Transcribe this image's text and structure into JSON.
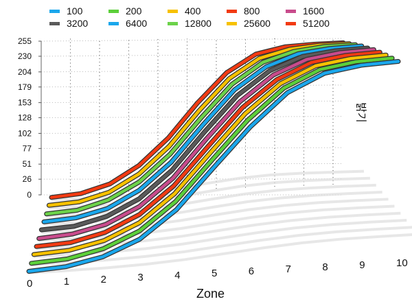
{
  "chart_data": {
    "type": "line",
    "style": "3d-ribbon",
    "xlabel": "Zone",
    "ylabel": "밝기",
    "categories": [
      "0",
      "1",
      "2",
      "3",
      "4",
      "5",
      "6",
      "7",
      "8",
      "9",
      "10"
    ],
    "yticks": [
      "0",
      "26",
      "51",
      "77",
      "102",
      "128",
      "153",
      "179",
      "204",
      "230",
      "255"
    ],
    "ylim": [
      0,
      255
    ],
    "grid": true,
    "legend": "top",
    "series": [
      {
        "name": "100",
        "color": "#1aa7ec",
        "values": [
          2,
          5,
          14,
          32,
          64,
          110,
          155,
          192,
          212,
          219,
          221
        ]
      },
      {
        "name": "200",
        "color": "#5ccf3a",
        "values": [
          2,
          5,
          15,
          34,
          67,
          114,
          160,
          196,
          216,
          223,
          225
        ]
      },
      {
        "name": "400",
        "color": "#f7c100",
        "values": [
          3,
          6,
          16,
          36,
          70,
          118,
          165,
          200,
          220,
          227,
          229
        ]
      },
      {
        "name": "800",
        "color": "#f23a12",
        "values": [
          3,
          6,
          17,
          38,
          73,
          122,
          170,
          204,
          224,
          231,
          233
        ]
      },
      {
        "name": "1600",
        "color": "#c84b8c",
        "values": [
          3,
          7,
          18,
          40,
          76,
          127,
          175,
          209,
          228,
          235,
          237
        ]
      },
      {
        "name": "3200",
        "color": "#5a5a5a",
        "values": [
          4,
          7,
          19,
          42,
          80,
          132,
          181,
          214,
          232,
          238,
          240
        ]
      },
      {
        "name": "6400",
        "color": "#1aa7ec",
        "values": [
          4,
          8,
          20,
          45,
          84,
          137,
          187,
          219,
          236,
          242,
          244
        ]
      },
      {
        "name": "12800",
        "color": "#6cd24a",
        "values": [
          4,
          8,
          22,
          48,
          89,
          143,
          193,
          225,
          240,
          246,
          247
        ]
      },
      {
        "name": "25600",
        "color": "#f7c100",
        "values": [
          5,
          9,
          23,
          51,
          94,
          150,
          200,
          231,
          244,
          249,
          250
        ]
      },
      {
        "name": "51200",
        "color": "#f23a12",
        "values": [
          5,
          10,
          25,
          55,
          100,
          158,
          208,
          238,
          249,
          252,
          253
        ]
      }
    ]
  }
}
